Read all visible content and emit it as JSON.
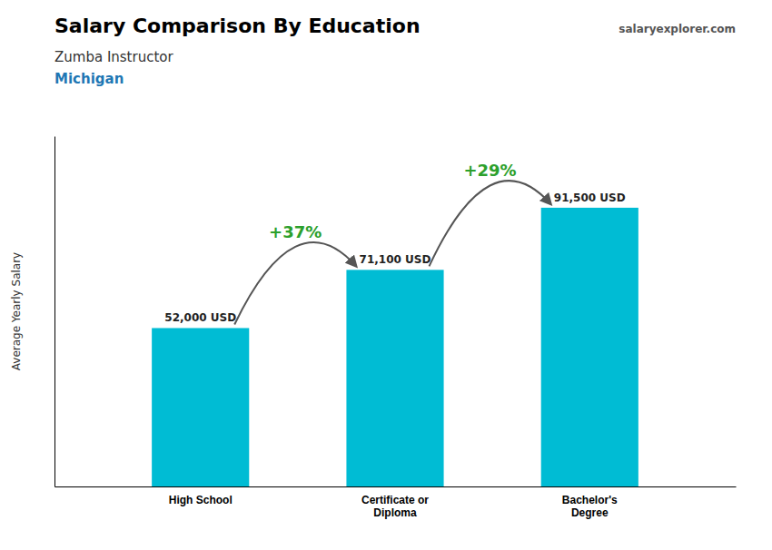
{
  "chart_data": {
    "type": "bar",
    "title": "Salary Comparison By Education",
    "subtitle": [
      "Zumba Instructor",
      "Michigan"
    ],
    "brand": "salaryexplorer.com",
    "ylabel": "Average Yearly Salary",
    "categories": [
      "High School",
      "Certificate or\nDiploma",
      "Bachelor's\nDegree"
    ],
    "values": [
      52000,
      71100,
      91500
    ],
    "value_labels": [
      "52,000 USD",
      "71,100 USD",
      "91,500 USD"
    ],
    "data_labels": true,
    "color": "#00bcd4",
    "ylim": [
      0,
      115000
    ],
    "tick_labels": "x",
    "annotations": [
      {
        "text": "+37%",
        "from": "High School",
        "to": "Certificate or\nDiploma"
      },
      {
        "text": "+29%",
        "from": "Certificate or\nDiploma",
        "to": "Bachelor's\nDegree"
      }
    ]
  }
}
